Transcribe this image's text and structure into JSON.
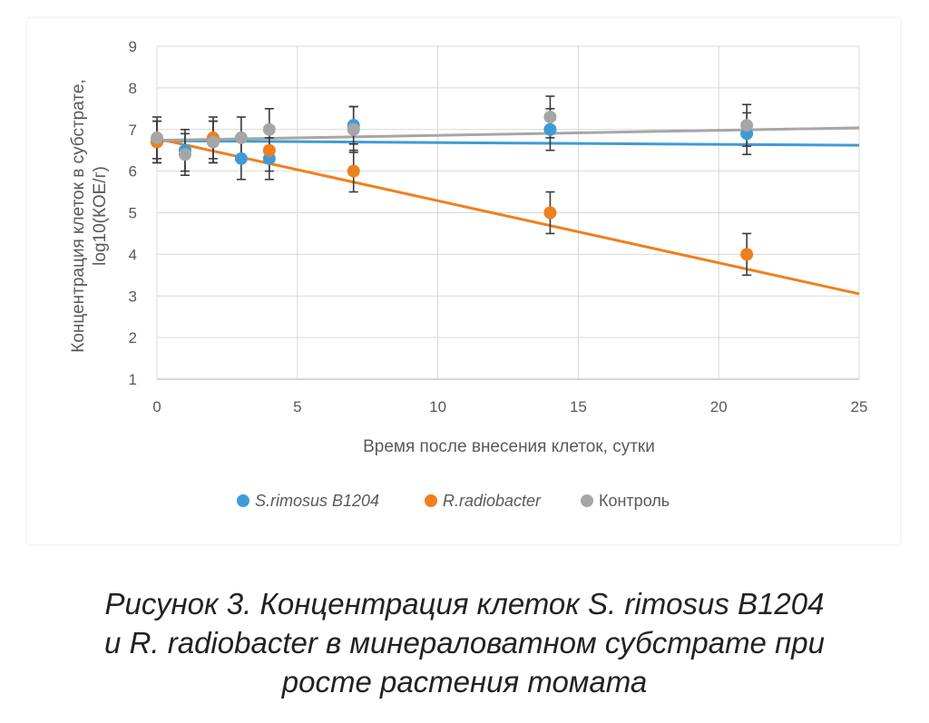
{
  "chart_data": {
    "type": "scatter",
    "ylabel_line1": "Концентрация клеток в субстрате,",
    "ylabel_line2": "log10(КОЕ/г)",
    "xlabel": "Время после внесения клеток, сутки",
    "xlim": [
      0,
      25
    ],
    "ylim": [
      1,
      9
    ],
    "x_ticks": [
      0,
      5,
      10,
      15,
      20,
      25
    ],
    "y_ticks": [
      1,
      2,
      3,
      4,
      5,
      6,
      7,
      8,
      9
    ],
    "grid": true,
    "legend_position": "bottom",
    "series": [
      {
        "name": "S.rimosus B1204",
        "color": "#3f9bd7",
        "x": [
          0,
          1,
          2,
          3,
          4,
          7,
          14,
          21
        ],
        "y": [
          6.7,
          6.5,
          6.7,
          6.3,
          6.3,
          7.1,
          7.0,
          6.9
        ],
        "error": [
          0.5,
          0.5,
          0.5,
          0.5,
          0.5,
          0.45,
          0.5,
          0.5
        ],
        "trend": [
          [
            0,
            6.73
          ],
          [
            25,
            6.62
          ]
        ]
      },
      {
        "name": "R.radiobacter",
        "color": "#f07f1e",
        "x": [
          0,
          2,
          4,
          7,
          14,
          21
        ],
        "y": [
          6.7,
          6.8,
          6.5,
          6.0,
          5.0,
          4.0
        ],
        "error": [
          0.5,
          0.5,
          0.5,
          0.5,
          0.5,
          0.5
        ],
        "trend": [
          [
            0,
            6.78
          ],
          [
            25,
            3.05
          ]
        ]
      },
      {
        "name": "Контроль",
        "color": "#a6a6a6",
        "x": [
          0,
          1,
          2,
          3,
          4,
          7,
          14,
          21
        ],
        "y": [
          6.8,
          6.4,
          6.7,
          6.8,
          7.0,
          7.0,
          7.3,
          7.1
        ],
        "error": [
          0.5,
          0.5,
          0.5,
          0.5,
          0.5,
          0.55,
          0.5,
          0.5
        ],
        "trend": [
          [
            0,
            6.74
          ],
          [
            25,
            7.04
          ]
        ]
      }
    ]
  },
  "caption": {
    "line1": "Рисунок 3. Концентрация клеток S. rimosus B1204",
    "line2": "и R. radiobacter в минераловатном субстрате при",
    "line3": "росте растения томата"
  }
}
